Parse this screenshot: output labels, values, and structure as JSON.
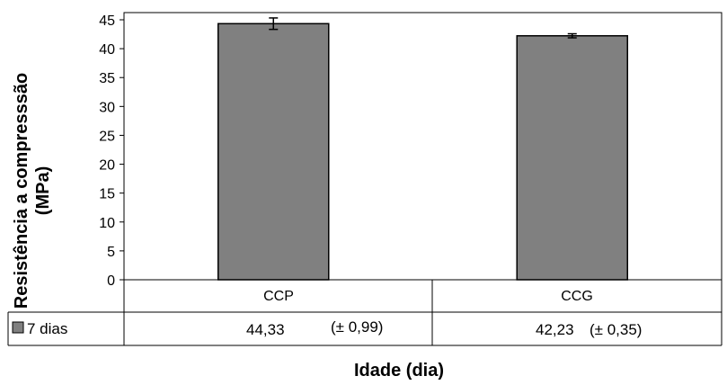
{
  "chart_data": {
    "type": "bar",
    "categories": [
      "CCP",
      "CCG"
    ],
    "series": [
      {
        "name": "7 dias",
        "values": [
          44.33,
          42.23
        ],
        "errors": [
          0.99,
          0.35
        ],
        "color": "#808080"
      }
    ],
    "xlabel": "Idade (dia)",
    "ylabel": "Resistência a compresssão (MPa)",
    "ylabel_lines": [
      "Resistência a compresssão",
      "(MPa)"
    ],
    "ylim": [
      0,
      45
    ],
    "yticks": [
      "0",
      "5",
      "10",
      "15",
      "20",
      "25",
      "30",
      "35",
      "40",
      "45"
    ],
    "grid": false,
    "data_table": {
      "legend_key": "7 dias",
      "cells": [
        {
          "value": "44,33",
          "error": "(± 0,99)"
        },
        {
          "value": "42,23",
          "error": "(± 0,35)"
        }
      ]
    }
  }
}
